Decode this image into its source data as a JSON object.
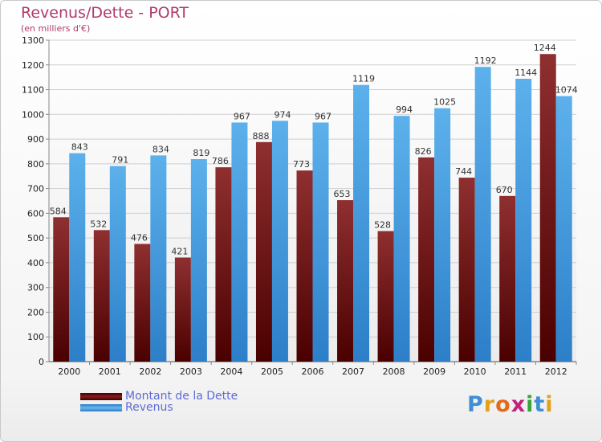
{
  "title": "Revenus/Dette - PORT",
  "subtitle": "(en milliers d'€)",
  "logo": {
    "letters": [
      "P",
      "r",
      "o",
      "x",
      "i",
      "t",
      "i"
    ],
    "colors": [
      "#3f8fd6",
      "#e3a01b",
      "#e36a1b",
      "#c2227a",
      "#37a53a",
      "#3f8fd6",
      "#e3a01b"
    ]
  },
  "chart_data": {
    "type": "bar",
    "categories": [
      "2000",
      "2001",
      "2002",
      "2003",
      "2004",
      "2005",
      "2006",
      "2007",
      "2008",
      "2009",
      "2010",
      "2011",
      "2012"
    ],
    "series": [
      {
        "name": "Montant de la Dette",
        "color": "#8b1a1a",
        "values": [
          584,
          532,
          476,
          421,
          786,
          888,
          773,
          653,
          528,
          826,
          744,
          670,
          1244
        ]
      },
      {
        "name": "Revenus",
        "color": "#4aa3e6",
        "values": [
          843,
          791,
          834,
          819,
          967,
          974,
          967,
          1119,
          994,
          1025,
          1192,
          1144,
          1074
        ]
      }
    ],
    "y_ticks": [
      0,
      100,
      200,
      300,
      400,
      500,
      600,
      700,
      800,
      900,
      1000,
      1100,
      1200,
      1300
    ],
    "ylim": [
      0,
      1300
    ],
    "grid": true,
    "legend_position": "bottom-left"
  }
}
